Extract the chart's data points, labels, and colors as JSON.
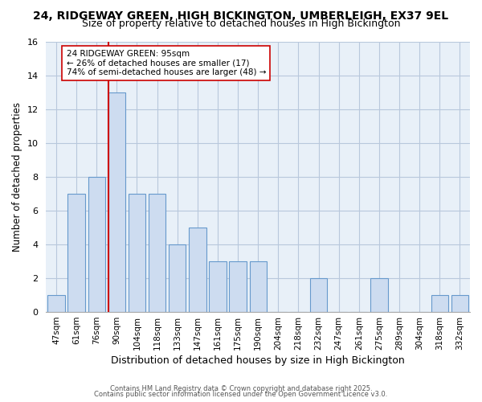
{
  "title": "24, RIDGEWAY GREEN, HIGH BICKINGTON, UMBERLEIGH, EX37 9EL",
  "subtitle": "Size of property relative to detached houses in High Bickington",
  "xlabel": "Distribution of detached houses by size in High Bickington",
  "ylabel": "Number of detached properties",
  "bar_labels": [
    "47sqm",
    "61sqm",
    "76sqm",
    "90sqm",
    "104sqm",
    "118sqm",
    "133sqm",
    "147sqm",
    "161sqm",
    "175sqm",
    "190sqm",
    "204sqm",
    "218sqm",
    "232sqm",
    "247sqm",
    "261sqm",
    "275sqm",
    "289sqm",
    "304sqm",
    "318sqm",
    "332sqm"
  ],
  "bar_values": [
    1,
    7,
    8,
    13,
    7,
    7,
    4,
    5,
    3,
    3,
    3,
    0,
    0,
    2,
    0,
    0,
    2,
    0,
    0,
    1,
    1
  ],
  "bar_color": "#cddcf0",
  "bar_edge_color": "#6699cc",
  "ylim": [
    0,
    16
  ],
  "yticks": [
    0,
    2,
    4,
    6,
    8,
    10,
    12,
    14,
    16
  ],
  "vline_x_index": 3,
  "vline_color": "#cc0000",
  "annotation_text": "24 RIDGEWAY GREEN: 95sqm\n← 26% of detached houses are smaller (17)\n74% of semi-detached houses are larger (48) →",
  "annotation_box_edge": "#cc0000",
  "footer_line1": "Contains HM Land Registry data © Crown copyright and database right 2025.",
  "footer_line2": "Contains public sector information licensed under the Open Government Licence v3.0.",
  "bg_color": "#ffffff",
  "plot_bg_color": "#e8f0f8",
  "grid_color": "#b8c8dc",
  "title_fontsize": 10,
  "subtitle_fontsize": 9,
  "xlabel_fontsize": 9,
  "ylabel_fontsize": 8.5
}
